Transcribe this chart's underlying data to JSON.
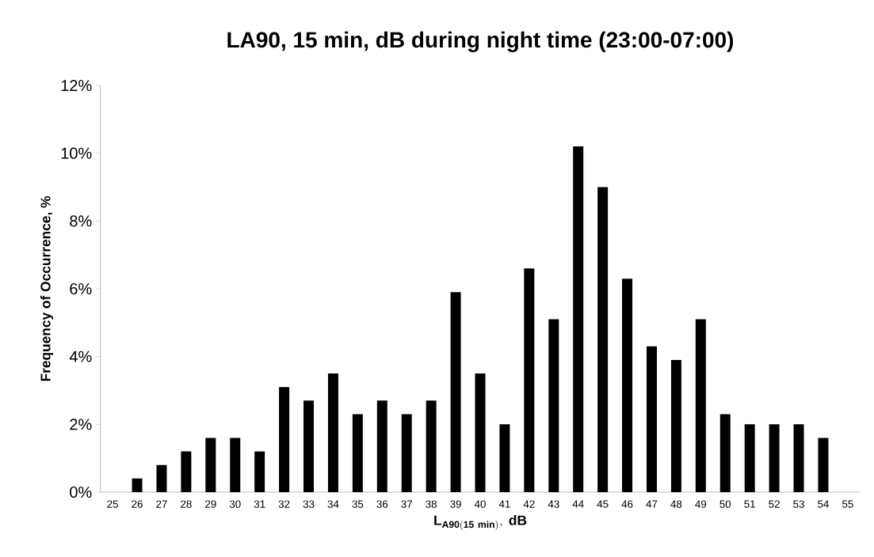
{
  "chart_data": {
    "type": "bar",
    "title": "LA90, 15 min, dB during night time (23:00-07:00)",
    "xlabel": "\\mathbf{L_{A90(15\\ min)},\\ dB}",
    "ylabel": "Frequency of Occurrence, %",
    "categories": [
      "25",
      "26",
      "27",
      "28",
      "29",
      "30",
      "31",
      "32",
      "33",
      "34",
      "35",
      "36",
      "37",
      "38",
      "39",
      "40",
      "41",
      "42",
      "43",
      "44",
      "45",
      "46",
      "47",
      "48",
      "49",
      "50",
      "51",
      "52",
      "53",
      "54",
      "55"
    ],
    "values": [
      0,
      0.4,
      0.8,
      1.2,
      1.6,
      1.6,
      1.2,
      3.1,
      2.7,
      3.5,
      2.3,
      2.7,
      2.3,
      2.7,
      5.9,
      3.5,
      2.0,
      6.6,
      5.1,
      10.2,
      9.0,
      6.3,
      4.3,
      3.9,
      5.1,
      2.3,
      2.0,
      2.0,
      2.0,
      1.6,
      0
    ],
    "color": "#000000",
    "ylim": [
      0,
      12
    ],
    "yticks": [
      {
        "value": 0,
        "label": "0%"
      },
      {
        "value": 2,
        "label": "2%"
      },
      {
        "value": 4,
        "label": "4%"
      },
      {
        "value": 6,
        "label": "6%"
      },
      {
        "value": 8,
        "label": "8%"
      },
      {
        "value": 10,
        "label": "10%"
      },
      {
        "value": 12,
        "label": "12%"
      }
    ],
    "grid": false
  }
}
